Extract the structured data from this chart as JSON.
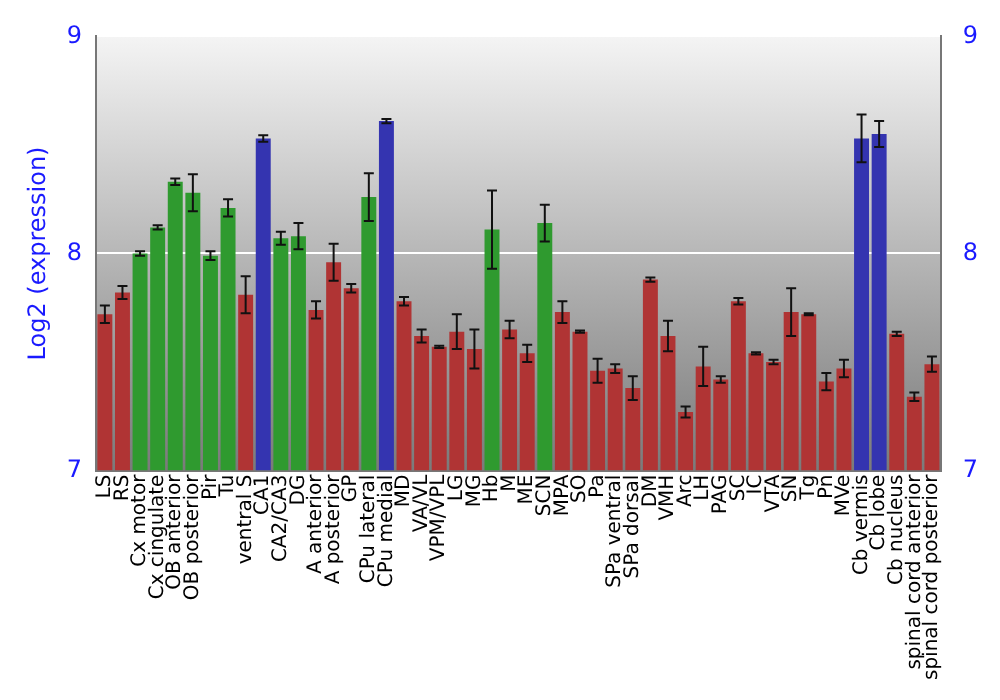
{
  "chart_data": {
    "type": "bar",
    "ylabel": "Log2 (expression)",
    "categories": [
      "LS",
      "RS",
      "Cx motor",
      "Cx cingulate",
      "OB anterior",
      "OB posterior",
      "Pir",
      "Tu",
      "ventral S",
      "CA1",
      "CA2/CA3",
      "DG",
      "A anterior",
      "A posterior",
      "GP",
      "CPu lateral",
      "CPu medial",
      "MD",
      "VA/VL",
      "VPM/VPL",
      "LG",
      "MG",
      "Hb",
      "M",
      "ME",
      "SCN",
      "MPA",
      "SO",
      "Pa",
      "SPa ventral",
      "SPa dorsal",
      "DM",
      "VMH",
      "Arc",
      "LH",
      "PAG",
      "SC",
      "IC",
      "VTA",
      "SN",
      "Tg",
      "Pn",
      "MVe",
      "Cb vermis",
      "Cb lobe",
      "Cb nucleus",
      "spinal cord anterior",
      "spinal cord posterior"
    ],
    "values": [
      7.72,
      7.82,
      8.0,
      8.12,
      8.33,
      8.28,
      7.99,
      8.21,
      7.81,
      8.53,
      8.07,
      8.08,
      7.74,
      7.96,
      7.84,
      8.26,
      8.61,
      7.78,
      7.62,
      7.57,
      7.64,
      7.56,
      8.11,
      7.65,
      7.54,
      8.14,
      7.73,
      7.64,
      7.46,
      7.47,
      7.38,
      7.88,
      7.62,
      7.27,
      7.48,
      7.42,
      7.78,
      7.54,
      7.5,
      7.73,
      7.72,
      7.41,
      7.47,
      8.53,
      8.55,
      7.63,
      7.34,
      7.49
    ],
    "errors": [
      0.04,
      0.03,
      0.01,
      0.01,
      0.015,
      0.085,
      0.02,
      0.04,
      0.085,
      0.015,
      0.03,
      0.06,
      0.04,
      0.085,
      0.02,
      0.11,
      0.01,
      0.02,
      0.03,
      0.005,
      0.08,
      0.09,
      0.18,
      0.04,
      0.04,
      0.085,
      0.05,
      0.005,
      0.055,
      0.02,
      0.055,
      0.01,
      0.07,
      0.025,
      0.09,
      0.015,
      0.015,
      0.005,
      0.01,
      0.11,
      0.005,
      0.04,
      0.04,
      0.11,
      0.06,
      0.01,
      0.02,
      0.035
    ],
    "colors": [
      "#b03434",
      "#b03434",
      "#2f9a2f",
      "#2f9a2f",
      "#2f9a2f",
      "#2f9a2f",
      "#2f9a2f",
      "#2f9a2f",
      "#b03434",
      "#3434b0",
      "#2f9a2f",
      "#2f9a2f",
      "#b03434",
      "#b03434",
      "#b03434",
      "#2f9a2f",
      "#3434b0",
      "#b03434",
      "#b03434",
      "#b03434",
      "#b03434",
      "#b03434",
      "#2f9a2f",
      "#b03434",
      "#b03434",
      "#2f9a2f",
      "#b03434",
      "#b03434",
      "#b03434",
      "#b03434",
      "#b03434",
      "#b03434",
      "#b03434",
      "#b03434",
      "#b03434",
      "#b03434",
      "#b03434",
      "#b03434",
      "#b03434",
      "#b03434",
      "#b03434",
      "#b03434",
      "#b03434",
      "#3434b0",
      "#3434b0",
      "#b03434",
      "#b03434",
      "#b03434"
    ],
    "ylim": [
      7,
      9
    ],
    "yticks": [
      7,
      8,
      9
    ],
    "y2lim": [
      7,
      9
    ],
    "y2ticks": [
      7,
      8,
      9
    ],
    "grid": "y",
    "legend": false
  }
}
